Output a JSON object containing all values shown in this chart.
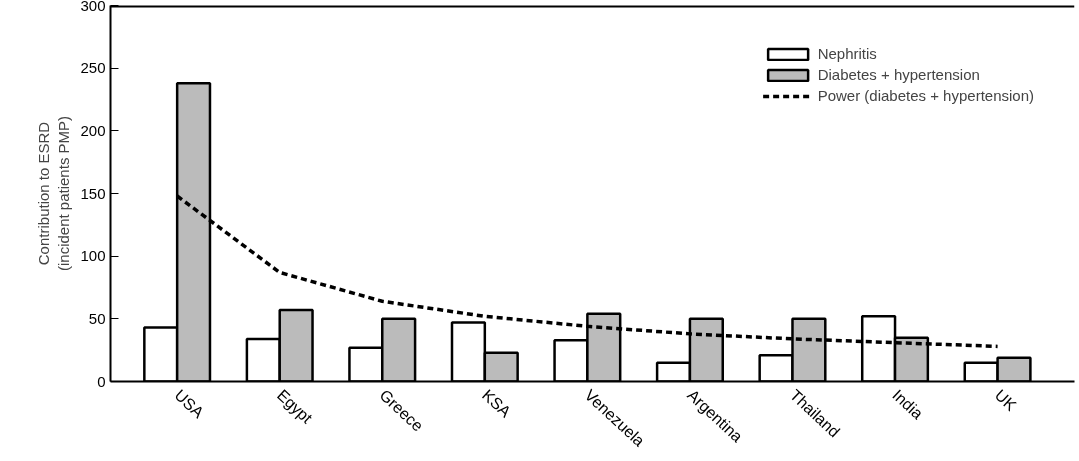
{
  "chart_data": {
    "type": "bar",
    "ylabel": "Contribution to ESRD\n(incident patients PMP)",
    "categories": [
      "USA",
      "Egypt",
      "Greece",
      "KSA",
      "Venezuela",
      "Argentina",
      "Thailand",
      "India",
      "UK"
    ],
    "series": [
      {
        "name": "Nephritis",
        "color": "#ffffff",
        "values": [
          43,
          34,
          27,
          47,
          33,
          15,
          21,
          52,
          15
        ]
      },
      {
        "name": "Diabetes + hypertension",
        "color": "#bbbbbb",
        "values": [
          238,
          57,
          50,
          23,
          54,
          50,
          50,
          35,
          19
        ]
      },
      {
        "name": "Power (diabetes + hypertension)",
        "type": "line",
        "color": "#000000",
        "line_style": "dashed",
        "values": [
          148,
          87,
          64,
          52,
          44,
          38,
          34,
          31,
          28
        ]
      }
    ],
    "ylim": [
      0,
      300
    ],
    "yticks": [
      0,
      50,
      100,
      150,
      200,
      250,
      300
    ],
    "grid": false,
    "legend": "top right"
  }
}
